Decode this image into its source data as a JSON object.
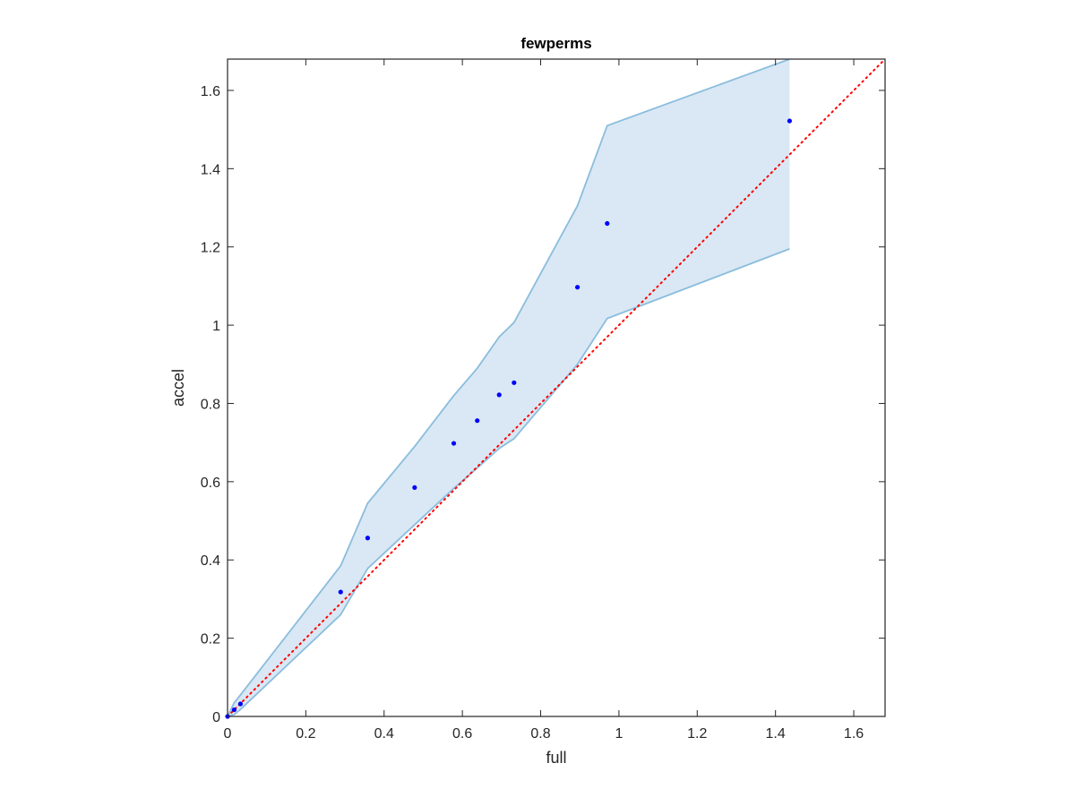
{
  "chart_data": {
    "type": "scatter",
    "title": "fewperms",
    "xlabel": "full",
    "ylabel": "accel",
    "xlim": [
      0,
      1.68
    ],
    "ylim": [
      0,
      1.68
    ],
    "xticks": [
      0,
      0.2,
      0.4,
      0.6,
      0.8,
      1,
      1.2,
      1.4,
      1.6
    ],
    "xtick_labels": [
      "0",
      "0.2",
      "0.4",
      "0.6",
      "0.8",
      "1",
      "1.2",
      "1.4",
      "1.6"
    ],
    "yticks": [
      0,
      0.2,
      0.4,
      0.6,
      0.8,
      1,
      1.2,
      1.4,
      1.6
    ],
    "ytick_labels": [
      "0",
      "0.2",
      "0.4",
      "0.6",
      "0.8",
      "1",
      "1.2",
      "1.4",
      "1.6"
    ],
    "grid": false,
    "points": {
      "x": [
        0,
        0.017,
        0.033,
        0.289,
        0.358,
        0.478,
        0.578,
        0.638,
        0.694,
        0.732,
        0.894,
        0.97,
        1.436
      ],
      "y": [
        0,
        0.017,
        0.032,
        0.318,
        0.456,
        0.585,
        0.698,
        0.756,
        0.822,
        0.853,
        1.097,
        1.26,
        1.522
      ],
      "color": "#0000ff"
    },
    "band": {
      "x": [
        0,
        0.017,
        0.033,
        0.289,
        0.358,
        0.478,
        0.578,
        0.638,
        0.694,
        0.732,
        0.894,
        0.97,
        1.436
      ],
      "upper": [
        0,
        0.035,
        0.055,
        0.385,
        0.545,
        0.69,
        0.82,
        0.89,
        0.97,
        1.007,
        1.305,
        1.51,
        1.68
      ],
      "lower": [
        0,
        0.005,
        0.018,
        0.26,
        0.378,
        0.49,
        0.583,
        0.635,
        0.685,
        0.71,
        0.9,
        1.017,
        1.195
      ],
      "fill": "#d9e8f4",
      "edge": "#8bbddd"
    },
    "reference_line": {
      "x": [
        0,
        1.68
      ],
      "y": [
        0,
        1.68
      ],
      "color": "#ff0000",
      "style": "dotted"
    }
  }
}
